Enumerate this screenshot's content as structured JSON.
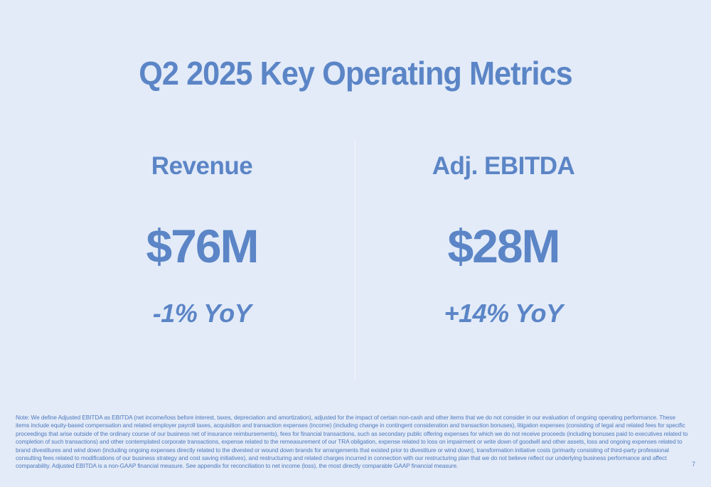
{
  "slide": {
    "title": "Q2 2025 Key Operating Metrics",
    "page_number": "7"
  },
  "metrics": [
    {
      "label": "Revenue",
      "value": "$76M",
      "change": "-1% YoY"
    },
    {
      "label": "Adj. EBITDA",
      "value": "$28M",
      "change": "+14% YoY"
    }
  ],
  "footer": {
    "note": "Note: We define Adjusted EBITDA as EBITDA (net income/loss before interest, taxes, depreciation and amortization), adjusted for the impact of certain non-cash and other items that we do not consider in our evaluation of ongoing operating performance. These items include equity-based compensation and related employer payroll taxes, acquisition and transaction expenses (income) (including change in contingent consideration and transaction bonuses), litigation expenses (consisting of legal and related fees for specific proceedings that arise outside of the ordinary course of our business net of insurance reimbursements), fees for financial transactions, such as secondary public offering expenses for which we do not receive proceeds (including bonuses paid to executives related to completion of such transactions) and other contemplated corporate transactions, expense related to the remeasurement of our TRA obligation, expense related to loss on impairment or write down of goodwill and other assets, loss and ongoing expenses related to brand divestitures and wind down (including ongoing expenses directly related to the divested or wound down brands for arrangements that existed prior to divestiture or wind down), transformation initiative costs (primarily consisting of third-party professional consulting fees related to modifications of our business strategy and cost saving initiatives), and restructuring and related charges incurred in connection with our restructuring plan that we do not believe reflect our underlying business performance and affect comparability. Adjusted EBITDA is a non-GAAP financial measure. See appendix for reconciliation to net income (loss), the most directly comparable GAAP financial measure."
  },
  "colors": {
    "background": "#e3ebf8",
    "accent": "#5b85c6"
  }
}
